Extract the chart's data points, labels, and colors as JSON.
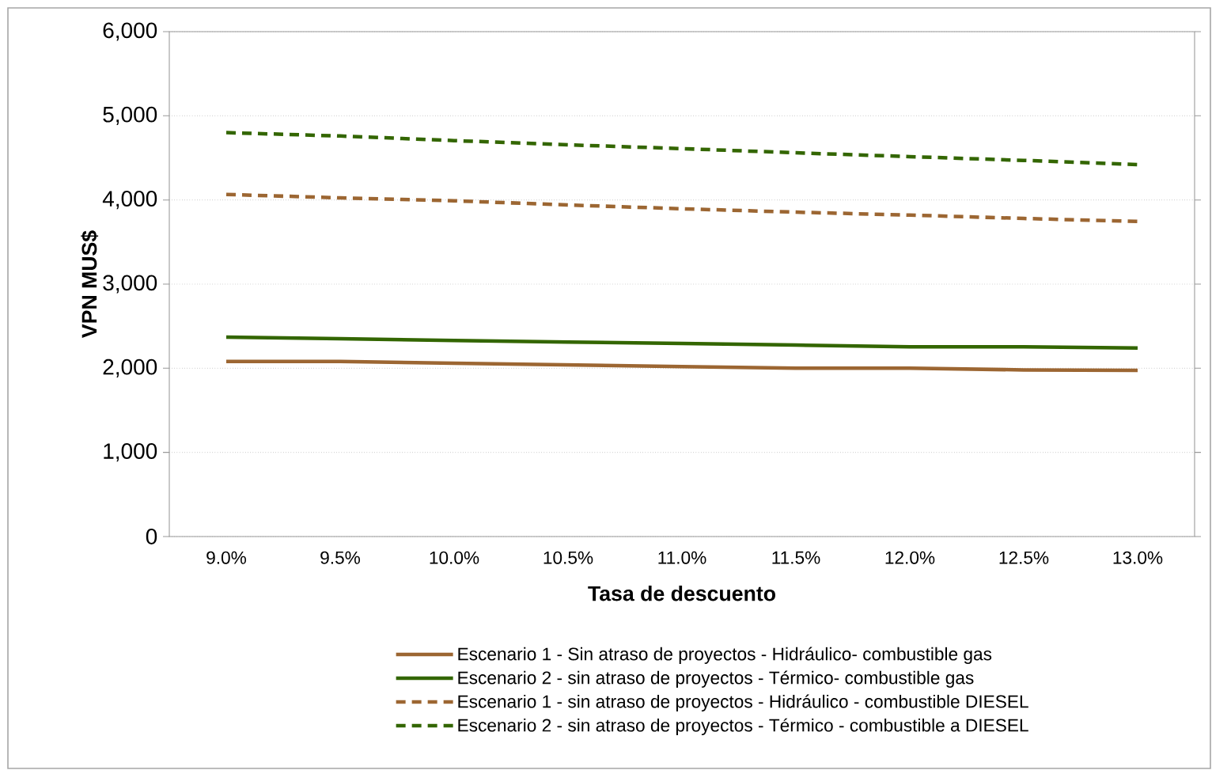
{
  "chart_data": {
    "type": "line",
    "xlabel": "Tasa de descuento",
    "ylabel": "VPN MUS$",
    "categories": [
      "9.0%",
      "9.5%",
      "10.0%",
      "10.5%",
      "11.0%",
      "11.5%",
      "12.0%",
      "12.5%",
      "13.0%"
    ],
    "ylim": [
      0,
      6000
    ],
    "yticks": [
      {
        "value": 0,
        "label": "0"
      },
      {
        "value": 1000,
        "label": "1,000"
      },
      {
        "value": 2000,
        "label": "2,000"
      },
      {
        "value": 3000,
        "label": "3,000"
      },
      {
        "value": 4000,
        "label": "4,000"
      },
      {
        "value": 5000,
        "label": "5,000"
      },
      {
        "value": 6000,
        "label": "6,000"
      }
    ],
    "grid": "y",
    "legend": "bottom",
    "marker": "none",
    "series": [
      {
        "name": "Escenario 1 - Sin atraso de proyectos - Hidráulico- combustible gas",
        "color": "#9c6632",
        "line_style": "solid",
        "values": [
          2080,
          2080,
          2060,
          2040,
          2020,
          2000,
          2000,
          1980,
          1975
        ]
      },
      {
        "name": "Escenario 2 - sin atraso de proyectos - Térmico- combustible gas",
        "color": "#336600",
        "line_style": "solid",
        "values": [
          2370,
          2350,
          2330,
          2310,
          2295,
          2275,
          2255,
          2255,
          2240
        ]
      },
      {
        "name": "Escenario 1 - sin atraso de proyectos - Hidráulico - combustible  DIESEL",
        "color": "#9c6632",
        "line_style": "dashed",
        "values": [
          4065,
          4025,
          3990,
          3940,
          3895,
          3855,
          3820,
          3780,
          3745
        ]
      },
      {
        "name": "Escenario 2 - sin atraso de proyectos - Térmico - combustible a DIESEL",
        "color": "#336600",
        "line_style": "dashed",
        "values": [
          4800,
          4760,
          4705,
          4655,
          4610,
          4560,
          4515,
          4470,
          4420
        ]
      }
    ]
  }
}
